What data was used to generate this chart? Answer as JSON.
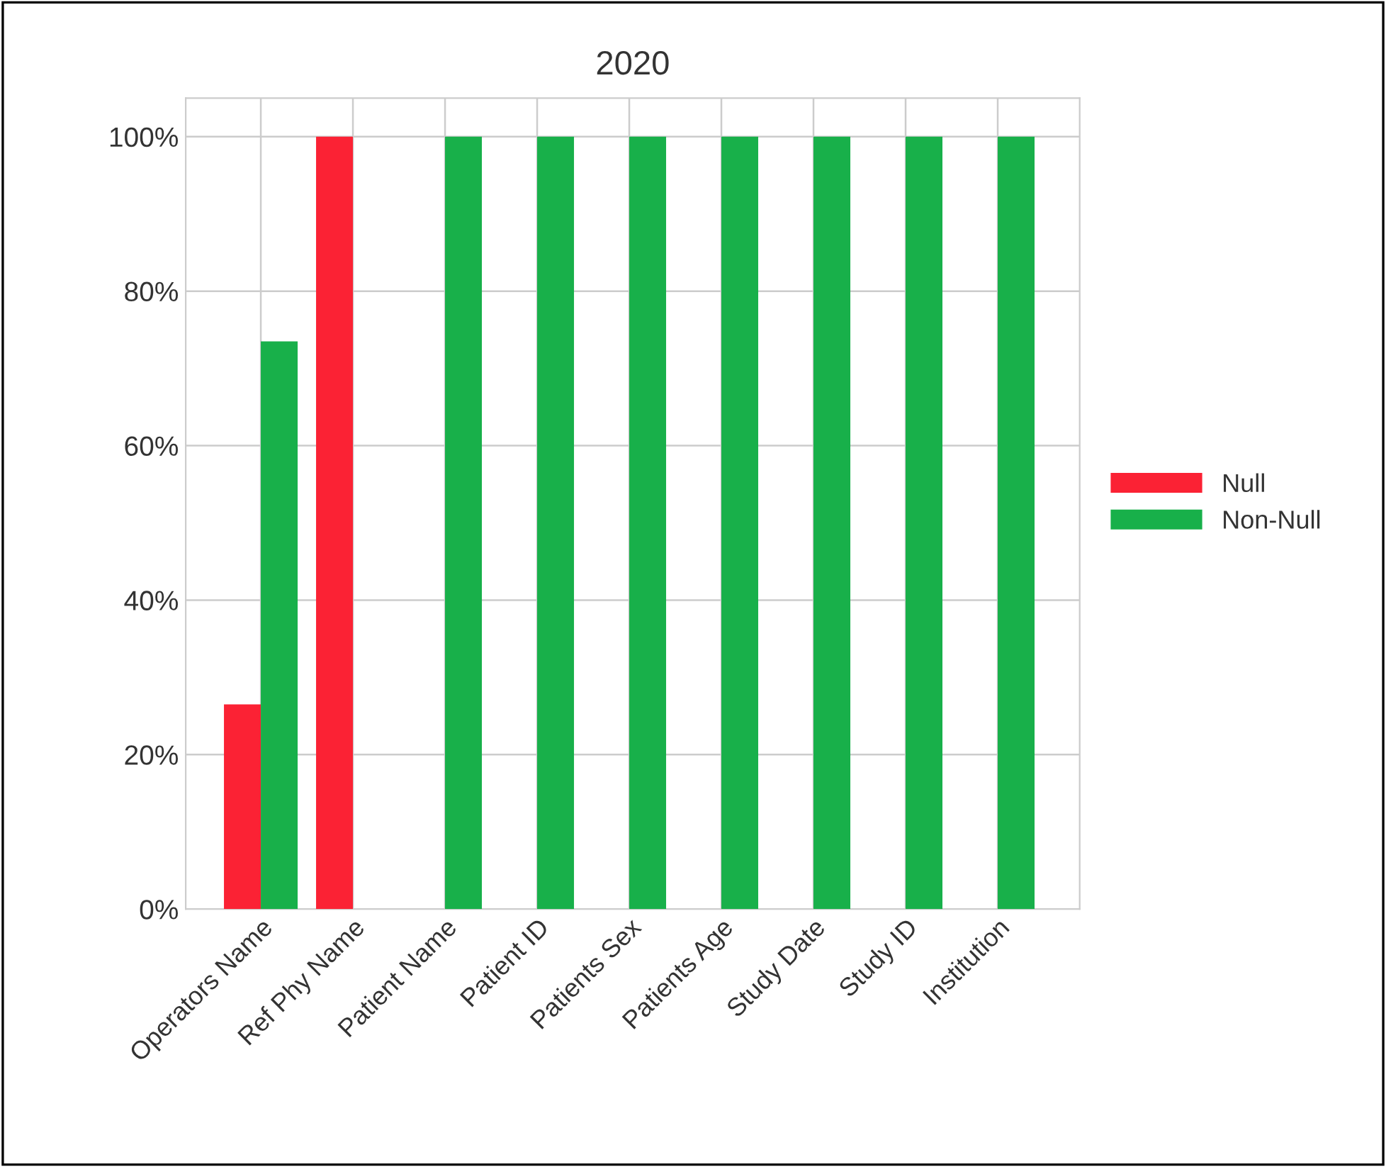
{
  "chart_data": {
    "type": "bar",
    "title": "2020",
    "categories": [
      "Operators Name",
      "Ref Phy Name",
      "Patient Name",
      "Patient ID",
      "Patients Sex",
      "Patients Age",
      "Study Date",
      "Study ID",
      "Institution"
    ],
    "series": [
      {
        "name": "Null",
        "color": "#fb2234",
        "values": [
          26.5,
          100,
          0,
          0,
          0,
          0,
          0,
          0,
          0
        ]
      },
      {
        "name": "Non-Null",
        "color": "#18b04a",
        "values": [
          73.5,
          0,
          100,
          100,
          100,
          100,
          100,
          100,
          100
        ]
      }
    ],
    "ylim": [
      0,
      105
    ],
    "yticks": [
      {
        "value": 0,
        "label": "0%"
      },
      {
        "value": 20,
        "label": "20%"
      },
      {
        "value": 40,
        "label": "40%"
      },
      {
        "value": 60,
        "label": "60%"
      },
      {
        "value": 80,
        "label": "80%"
      },
      {
        "value": 100,
        "label": "100%"
      }
    ],
    "grid": true,
    "legend": "right"
  }
}
